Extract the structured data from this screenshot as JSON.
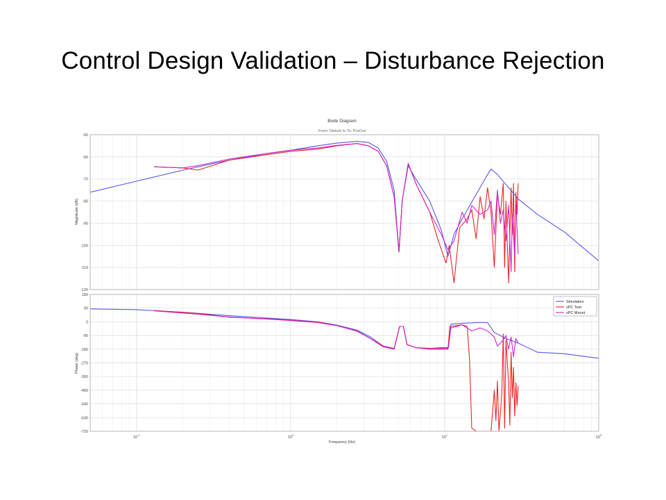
{
  "slide": {
    "title": "Control Design Validation – Disturbance Rejection"
  },
  "chart_data": {
    "type": "line",
    "title": "Bode Diagram",
    "subtitle": "From: Disturb In  To: PosOut",
    "xlabel": "Frequency (Hz)",
    "xscale": "log",
    "xlim": [
      0.05,
      100
    ],
    "x_ticks": [
      {
        "value": 0.1,
        "base": "10",
        "exp": "-1"
      },
      {
        "value": 1,
        "base": "10",
        "exp": "0"
      },
      {
        "value": 10,
        "base": "10",
        "exp": "1"
      },
      {
        "value": 100,
        "base": "10",
        "exp": "2"
      }
    ],
    "grid": true,
    "legend_position": "top-right",
    "series_styles": [
      {
        "name": "Simulation",
        "color": "#5555ee"
      },
      {
        "name": "xPC Test",
        "color": "#ee2222"
      },
      {
        "name": "xPC Mount",
        "color": "#cc22cc"
      }
    ],
    "panels": [
      {
        "id": "magnitude",
        "ylabel": "Magnitude (dB)",
        "ylim": [
          -120,
          -50
        ],
        "y_ticks": [
          "-50",
          "-60",
          "-70",
          "-80",
          "-90",
          "-100",
          "-110",
          "-120"
        ],
        "series": [
          {
            "name": "Simulation",
            "points": [
              [
                0.05,
                -76
              ],
              [
                0.1,
                -71
              ],
              [
                0.2,
                -66
              ],
              [
                0.4,
                -61.5
              ],
              [
                0.7,
                -58.5
              ],
              [
                1,
                -57
              ],
              [
                1.5,
                -55
              ],
              [
                2,
                -53.8
              ],
              [
                2.7,
                -53
              ],
              [
                3.2,
                -53.5
              ],
              [
                3.7,
                -56
              ],
              [
                4.2,
                -62
              ],
              [
                4.7,
                -75
              ],
              [
                5.05,
                -103
              ],
              [
                5.3,
                -80
              ],
              [
                5.8,
                -64
              ],
              [
                6.5,
                -70
              ],
              [
                8,
                -80
              ],
              [
                9.5,
                -93
              ],
              [
                10.5,
                -105
              ],
              [
                11.5,
                -95
              ],
              [
                13,
                -88
              ],
              [
                16,
                -77
              ],
              [
                19,
                -68
              ],
              [
                20,
                -65.5
              ],
              [
                22,
                -68
              ],
              [
                25,
                -72.5
              ],
              [
                30,
                -79
              ],
              [
                40,
                -86
              ],
              [
                60,
                -94
              ],
              [
                100,
                -107
              ]
            ]
          },
          {
            "name": "xPC Test",
            "points": [
              [
                0.13,
                -64.5
              ],
              [
                0.2,
                -65
              ],
              [
                0.25,
                -66
              ],
              [
                0.4,
                -61.5
              ],
              [
                0.7,
                -59
              ],
              [
                1,
                -57.5
              ],
              [
                1.5,
                -56.5
              ],
              [
                2,
                -55
              ],
              [
                2.7,
                -54
              ],
              [
                3.2,
                -55
              ],
              [
                3.7,
                -57.5
              ],
              [
                4.2,
                -64
              ],
              [
                4.7,
                -78
              ],
              [
                5.05,
                -103
              ],
              [
                5.3,
                -80
              ],
              [
                5.8,
                -63
              ],
              [
                6.5,
                -72
              ],
              [
                8,
                -85
              ],
              [
                9,
                -97
              ],
              [
                10.2,
                -108
              ],
              [
                10.7,
                -100
              ],
              [
                11.5,
                -117
              ],
              [
                12.5,
                -92
              ],
              [
                14,
                -88
              ],
              [
                15,
                -84
              ],
              [
                16,
                -97
              ],
              [
                17,
                -78
              ],
              [
                18,
                -88
              ],
              [
                19,
                -74
              ],
              [
                20,
                -85
              ],
              [
                21,
                -110
              ],
              [
                22,
                -77
              ],
              [
                23,
                -86
              ],
              [
                24,
                -72
              ],
              [
                24.5,
                -110
              ],
              [
                25,
                -80
              ],
              [
                26,
                -117
              ],
              [
                27,
                -74
              ],
              [
                27.5,
                -95
              ],
              [
                28,
                -72
              ],
              [
                28.5,
                -112
              ],
              [
                29,
                -76
              ],
              [
                29.5,
                -86
              ],
              [
                30,
                -72
              ]
            ]
          },
          {
            "name": "xPC Mount",
            "points": [
              [
                0.13,
                -64.5
              ],
              [
                0.2,
                -65
              ],
              [
                0.25,
                -64
              ],
              [
                0.4,
                -61
              ],
              [
                0.7,
                -58.5
              ],
              [
                1,
                -57
              ],
              [
                1.5,
                -56
              ],
              [
                2,
                -54.8
              ],
              [
                2.7,
                -54
              ],
              [
                3.2,
                -55
              ],
              [
                3.7,
                -57.5
              ],
              [
                4.2,
                -64
              ],
              [
                4.7,
                -78
              ],
              [
                5.05,
                -103
              ],
              [
                5.3,
                -80
              ],
              [
                5.8,
                -63
              ],
              [
                6.5,
                -72
              ],
              [
                8,
                -85
              ],
              [
                9.5,
                -95
              ],
              [
                10.5,
                -102
              ],
              [
                11.5,
                -98
              ],
              [
                13,
                -85
              ],
              [
                14,
                -90
              ],
              [
                15,
                -82
              ],
              [
                17,
                -86
              ],
              [
                19,
                -84
              ],
              [
                20,
                -80
              ],
              [
                21,
                -95
              ],
              [
                22,
                -75
              ],
              [
                23,
                -90
              ],
              [
                24,
                -84
              ],
              [
                25,
                -98
              ],
              [
                26,
                -82
              ],
              [
                27,
                -112
              ],
              [
                27.5,
                -86
              ],
              [
                28.5,
                -105
              ],
              [
                29,
                -80
              ],
              [
                30,
                -104
              ]
            ]
          }
        ]
      },
      {
        "id": "phase",
        "ylabel": "Phase (deg)",
        "ylim": [
          -720,
          180
        ],
        "y_ticks": [
          "180",
          "90",
          "0",
          "-90",
          "-180",
          "-270",
          "-360",
          "-450",
          "-540",
          "-630",
          "-720"
        ],
        "series": [
          {
            "name": "Simulation",
            "points": [
              [
                0.05,
                85
              ],
              [
                0.1,
                80
              ],
              [
                0.2,
                63
              ],
              [
                0.4,
                40
              ],
              [
                0.7,
                25
              ],
              [
                1,
                15
              ],
              [
                1.5,
                0
              ],
              [
                2,
                -22
              ],
              [
                2.7,
                -55
              ],
              [
                3.3,
                -100
              ],
              [
                4,
                -160
              ],
              [
                4.7,
                -175
              ],
              [
                5.1,
                -30
              ],
              [
                5.4,
                -30
              ],
              [
                5.7,
                -150
              ],
              [
                6.5,
                -170
              ],
              [
                8,
                -175
              ],
              [
                9.5,
                -170
              ],
              [
                10.6,
                -170
              ],
              [
                11,
                -15
              ],
              [
                13,
                -10
              ],
              [
                16,
                -5
              ],
              [
                19,
                -5
              ],
              [
                21,
                -70
              ],
              [
                25,
                -110
              ],
              [
                30,
                -140
              ],
              [
                40,
                -200
              ],
              [
                60,
                -210
              ],
              [
                100,
                -240
              ]
            ]
          },
          {
            "name": "xPC Test",
            "points": [
              [
                0.13,
                75
              ],
              [
                0.25,
                55
              ],
              [
                0.4,
                30
              ],
              [
                0.7,
                20
              ],
              [
                1,
                10
              ],
              [
                1.5,
                -2
              ],
              [
                2,
                -25
              ],
              [
                2.7,
                -60
              ],
              [
                3.3,
                -110
              ],
              [
                4,
                -165
              ],
              [
                4.7,
                -180
              ],
              [
                5.1,
                -30
              ],
              [
                5.4,
                -30
              ],
              [
                5.7,
                -150
              ],
              [
                6.5,
                -170
              ],
              [
                8,
                -180
              ],
              [
                10.5,
                -180
              ],
              [
                10.8,
                -30
              ],
              [
                13,
                -20
              ],
              [
                14,
                -30
              ],
              [
                14.5,
                -250
              ],
              [
                15,
                -700
              ],
              [
                16,
                -720
              ],
              [
                20,
                -720
              ],
              [
                21,
                -450
              ],
              [
                21.5,
                -650
              ],
              [
                22,
                -390
              ],
              [
                22.5,
                -720
              ],
              [
                23.5,
                -480
              ],
              [
                24,
                -80
              ],
              [
                24.5,
                -700
              ],
              [
                25,
                -120
              ],
              [
                26,
                -400
              ],
              [
                26.5,
                -680
              ],
              [
                27,
                -200
              ],
              [
                27.5,
                -500
              ],
              [
                28,
                -300
              ],
              [
                28.5,
                -620
              ],
              [
                29,
                -400
              ],
              [
                29.5,
                -550
              ],
              [
                30,
                -420
              ]
            ]
          },
          {
            "name": "xPC Mount",
            "points": [
              [
                0.13,
                72
              ],
              [
                0.25,
                50
              ],
              [
                0.4,
                32
              ],
              [
                0.7,
                18
              ],
              [
                1,
                8
              ],
              [
                1.5,
                -5
              ],
              [
                2,
                -25
              ],
              [
                2.7,
                -62
              ],
              [
                3.3,
                -110
              ],
              [
                4,
                -160
              ],
              [
                4.7,
                -178
              ],
              [
                5.1,
                -30
              ],
              [
                5.4,
                -30
              ],
              [
                5.7,
                -150
              ],
              [
                6.5,
                -170
              ],
              [
                8,
                -175
              ],
              [
                10.5,
                -175
              ],
              [
                11,
                -40
              ],
              [
                13,
                -20
              ],
              [
                15,
                -60
              ],
              [
                17,
                -40
              ],
              [
                19,
                -60
              ],
              [
                21,
                -100
              ],
              [
                22,
                -160
              ],
              [
                24,
                -120
              ],
              [
                25,
                -90
              ],
              [
                26,
                -180
              ],
              [
                27,
                -100
              ],
              [
                28,
                -230
              ],
              [
                29,
                -110
              ],
              [
                30,
                -140
              ]
            ]
          }
        ]
      }
    ]
  }
}
